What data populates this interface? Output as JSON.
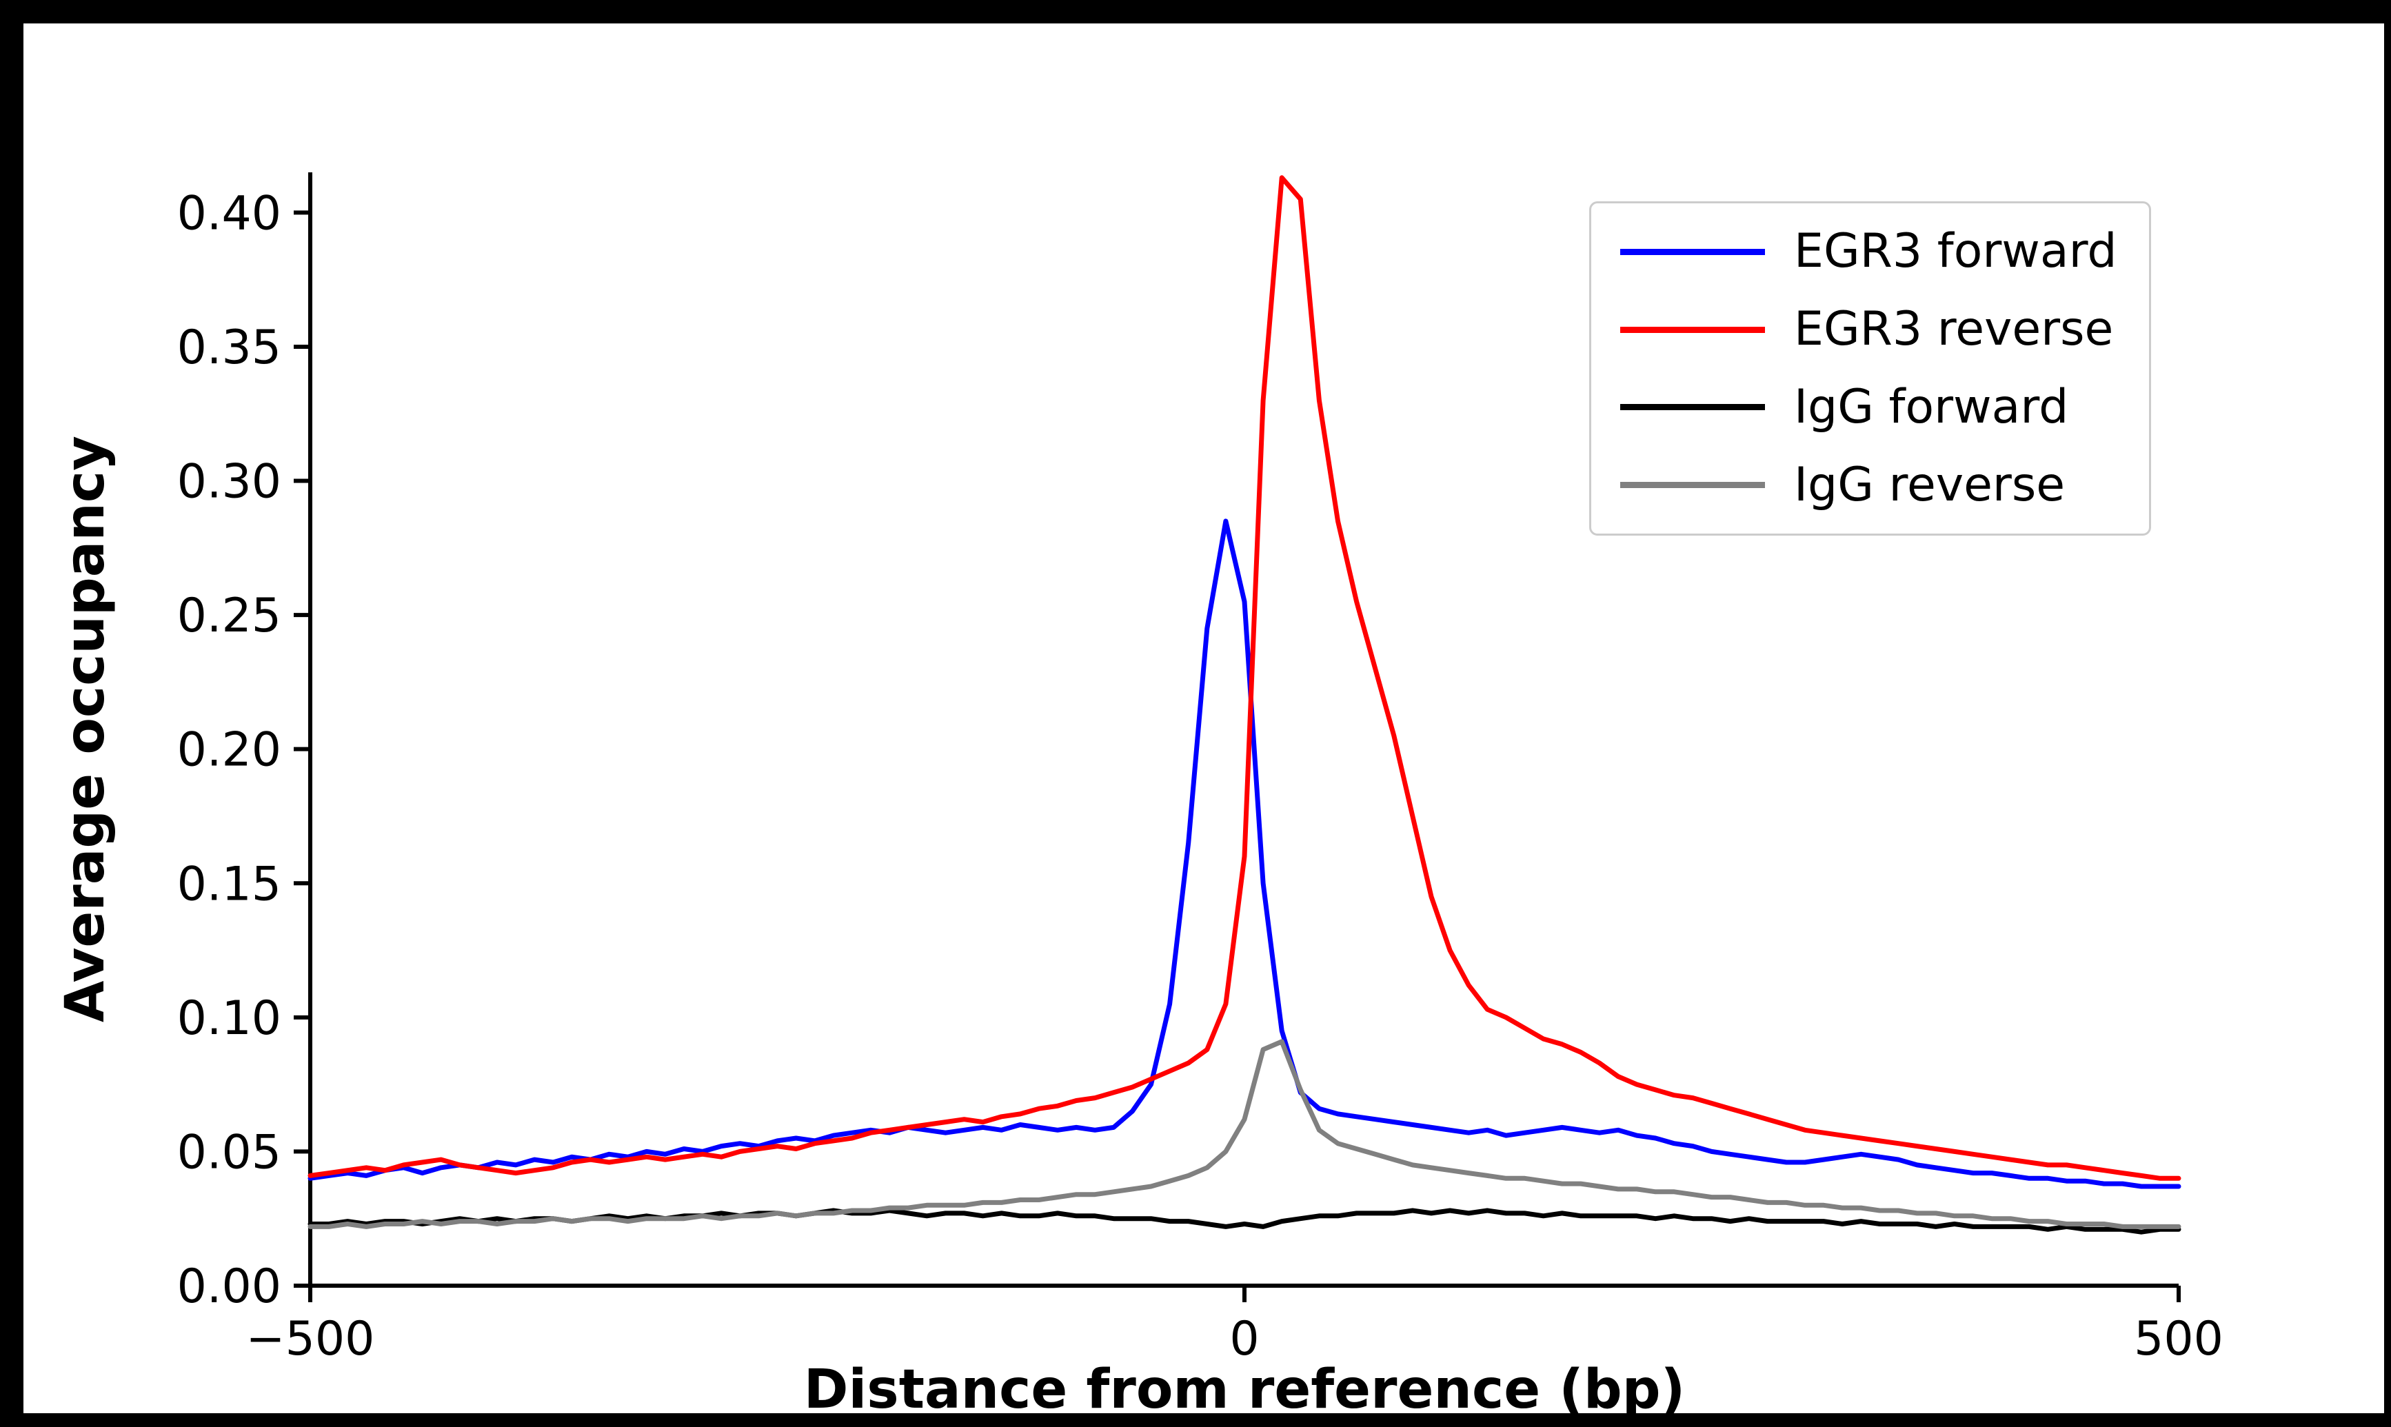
{
  "figure": {
    "background": "#ffffff",
    "frame_color": "#000000",
    "axis_color": "#000000"
  },
  "chart_data": {
    "type": "line",
    "title": "",
    "xlabel": "Distance from reference (bp)",
    "ylabel": "Average occupancy",
    "xlim": [
      -500,
      500
    ],
    "ylim": [
      0,
      0.415
    ],
    "grid": false,
    "xticks": {
      "values": [
        -500,
        0,
        500
      ],
      "labels": [
        "−500",
        "0",
        "500"
      ]
    },
    "yticks": {
      "values": [
        0.0,
        0.05,
        0.1,
        0.15,
        0.2,
        0.25,
        0.3,
        0.35,
        0.4
      ],
      "labels": [
        "0.00",
        "0.05",
        "0.10",
        "0.15",
        "0.20",
        "0.25",
        "0.30",
        "0.35",
        "0.40"
      ]
    },
    "legend": {
      "position": "upper right"
    },
    "x_start": -500,
    "x_step": 10,
    "x_count": 101,
    "series": [
      {
        "name": "EGR3 forward",
        "color": "#0000ff",
        "values": [
          0.04,
          0.041,
          0.042,
          0.041,
          0.043,
          0.044,
          0.042,
          0.044,
          0.045,
          0.044,
          0.046,
          0.045,
          0.047,
          0.046,
          0.048,
          0.047,
          0.049,
          0.048,
          0.05,
          0.049,
          0.051,
          0.05,
          0.052,
          0.053,
          0.052,
          0.054,
          0.055,
          0.054,
          0.056,
          0.057,
          0.058,
          0.057,
          0.059,
          0.058,
          0.057,
          0.058,
          0.059,
          0.058,
          0.06,
          0.059,
          0.058,
          0.059,
          0.058,
          0.059,
          0.065,
          0.075,
          0.105,
          0.165,
          0.245,
          0.285,
          0.255,
          0.15,
          0.095,
          0.072,
          0.066,
          0.064,
          0.063,
          0.062,
          0.061,
          0.06,
          0.059,
          0.058,
          0.057,
          0.058,
          0.056,
          0.057,
          0.058,
          0.059,
          0.058,
          0.057,
          0.058,
          0.056,
          0.055,
          0.053,
          0.052,
          0.05,
          0.049,
          0.048,
          0.047,
          0.046,
          0.046,
          0.047,
          0.048,
          0.049,
          0.048,
          0.047,
          0.045,
          0.044,
          0.043,
          0.042,
          0.042,
          0.041,
          0.04,
          0.04,
          0.039,
          0.039,
          0.038,
          0.038,
          0.037,
          0.037,
          0.037
        ]
      },
      {
        "name": "EGR3 reverse",
        "color": "#ff0000",
        "values": [
          0.041,
          0.042,
          0.043,
          0.044,
          0.043,
          0.045,
          0.046,
          0.047,
          0.045,
          0.044,
          0.043,
          0.042,
          0.043,
          0.044,
          0.046,
          0.047,
          0.046,
          0.047,
          0.048,
          0.047,
          0.048,
          0.049,
          0.048,
          0.05,
          0.051,
          0.052,
          0.051,
          0.053,
          0.054,
          0.055,
          0.057,
          0.058,
          0.059,
          0.06,
          0.061,
          0.062,
          0.061,
          0.063,
          0.064,
          0.066,
          0.067,
          0.069,
          0.07,
          0.072,
          0.074,
          0.077,
          0.08,
          0.083,
          0.088,
          0.105,
          0.16,
          0.33,
          0.413,
          0.405,
          0.33,
          0.285,
          0.255,
          0.23,
          0.205,
          0.175,
          0.145,
          0.125,
          0.112,
          0.103,
          0.1,
          0.096,
          0.092,
          0.09,
          0.087,
          0.083,
          0.078,
          0.075,
          0.073,
          0.071,
          0.07,
          0.068,
          0.066,
          0.064,
          0.062,
          0.06,
          0.058,
          0.057,
          0.056,
          0.055,
          0.054,
          0.053,
          0.052,
          0.051,
          0.05,
          0.049,
          0.048,
          0.047,
          0.046,
          0.045,
          0.045,
          0.044,
          0.043,
          0.042,
          0.041,
          0.04,
          0.04
        ]
      },
      {
        "name": "IgG forward",
        "color": "#000000",
        "values": [
          0.023,
          0.023,
          0.024,
          0.023,
          0.024,
          0.024,
          0.023,
          0.024,
          0.025,
          0.024,
          0.025,
          0.024,
          0.025,
          0.025,
          0.024,
          0.025,
          0.026,
          0.025,
          0.026,
          0.025,
          0.026,
          0.026,
          0.027,
          0.026,
          0.027,
          0.027,
          0.026,
          0.027,
          0.028,
          0.027,
          0.027,
          0.028,
          0.027,
          0.026,
          0.027,
          0.027,
          0.026,
          0.027,
          0.026,
          0.026,
          0.027,
          0.026,
          0.026,
          0.025,
          0.025,
          0.025,
          0.024,
          0.024,
          0.023,
          0.022,
          0.023,
          0.022,
          0.024,
          0.025,
          0.026,
          0.026,
          0.027,
          0.027,
          0.027,
          0.028,
          0.027,
          0.028,
          0.027,
          0.028,
          0.027,
          0.027,
          0.026,
          0.027,
          0.026,
          0.026,
          0.026,
          0.026,
          0.025,
          0.026,
          0.025,
          0.025,
          0.024,
          0.025,
          0.024,
          0.024,
          0.024,
          0.024,
          0.023,
          0.024,
          0.023,
          0.023,
          0.023,
          0.022,
          0.023,
          0.022,
          0.022,
          0.022,
          0.022,
          0.021,
          0.022,
          0.021,
          0.021,
          0.021,
          0.02,
          0.021,
          0.021
        ]
      },
      {
        "name": "IgG reverse",
        "color": "#808080",
        "values": [
          0.022,
          0.022,
          0.023,
          0.022,
          0.023,
          0.023,
          0.024,
          0.023,
          0.024,
          0.024,
          0.023,
          0.024,
          0.024,
          0.025,
          0.024,
          0.025,
          0.025,
          0.024,
          0.025,
          0.025,
          0.025,
          0.026,
          0.025,
          0.026,
          0.026,
          0.027,
          0.026,
          0.027,
          0.027,
          0.028,
          0.028,
          0.029,
          0.029,
          0.03,
          0.03,
          0.03,
          0.031,
          0.031,
          0.032,
          0.032,
          0.033,
          0.034,
          0.034,
          0.035,
          0.036,
          0.037,
          0.039,
          0.041,
          0.044,
          0.05,
          0.062,
          0.088,
          0.091,
          0.073,
          0.058,
          0.053,
          0.051,
          0.049,
          0.047,
          0.045,
          0.044,
          0.043,
          0.042,
          0.041,
          0.04,
          0.04,
          0.039,
          0.038,
          0.038,
          0.037,
          0.036,
          0.036,
          0.035,
          0.035,
          0.034,
          0.033,
          0.033,
          0.032,
          0.031,
          0.031,
          0.03,
          0.03,
          0.029,
          0.029,
          0.028,
          0.028,
          0.027,
          0.027,
          0.026,
          0.026,
          0.025,
          0.025,
          0.024,
          0.024,
          0.023,
          0.023,
          0.023,
          0.022,
          0.022,
          0.022,
          0.022
        ]
      }
    ]
  }
}
